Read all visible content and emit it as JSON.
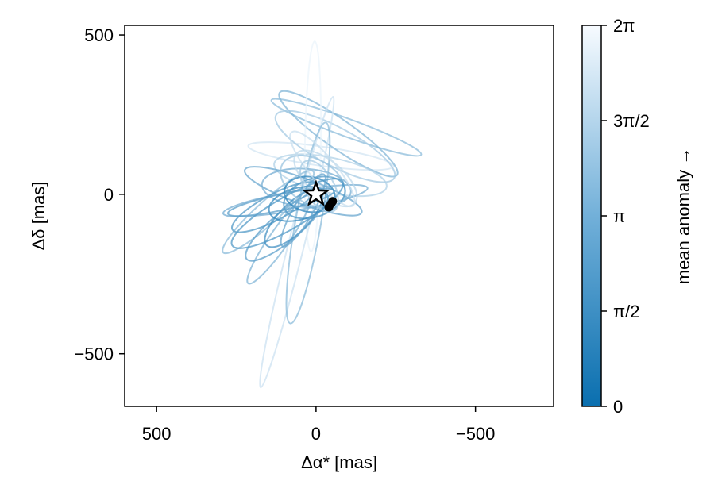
{
  "chart_data": {
    "type": "line",
    "xlabel": "Δα* [mas]",
    "ylabel": "Δδ [mas]",
    "x_axis_reversed": true,
    "xlim": [
      600,
      -745
    ],
    "ylim": [
      -665,
      530
    ],
    "xticks": [
      {
        "value": 500,
        "label": "500"
      },
      {
        "value": 0,
        "label": "0"
      },
      {
        "value": -500,
        "label": "−500"
      }
    ],
    "yticks": [
      {
        "value": 500,
        "label": "500"
      },
      {
        "value": 0,
        "label": "0"
      },
      {
        "value": -500,
        "label": "−500"
      }
    ],
    "grid": false,
    "colormap": {
      "low": "#0a6faf",
      "high": "#f7fbff"
    },
    "colorbar": {
      "label": "mean anomaly →",
      "ticks": [
        {
          "value": 0,
          "label": "0"
        },
        {
          "value": 0.25,
          "label": "π/2"
        },
        {
          "value": 0.5,
          "label": "π"
        },
        {
          "value": 0.75,
          "label": "3π/2"
        },
        {
          "value": 1.0,
          "label": "2π"
        }
      ]
    },
    "star": {
      "x": 0,
      "y": 0
    },
    "planet_points": [
      {
        "x": -52,
        "y": -22
      },
      {
        "x": -47,
        "y": -30
      },
      {
        "x": -40,
        "y": -40
      }
    ],
    "orbits": [
      {
        "cx": -15,
        "cy": 120,
        "a": 230,
        "b": 30,
        "angle": 8,
        "shade": 0.85
      },
      {
        "cx": -95,
        "cy": 210,
        "a": 250,
        "b": 28,
        "angle": 20,
        "shade": 0.55
      },
      {
        "cx": -70,
        "cy": 190,
        "a": 225,
        "b": 45,
        "angle": 35,
        "shade": 0.5
      },
      {
        "cx": -60,
        "cy": 150,
        "a": 210,
        "b": 60,
        "angle": 28,
        "shade": 0.65
      },
      {
        "cx": -45,
        "cy": 60,
        "a": 180,
        "b": 55,
        "angle": 12,
        "shade": 0.7
      },
      {
        "cx": 10,
        "cy": 150,
        "a": 330,
        "b": 25,
        "angle": -89,
        "shade": 0.95
      },
      {
        "cx": 60,
        "cy": -150,
        "a": 470,
        "b": 25,
        "angle": -76,
        "shade": 0.82
      },
      {
        "cx": 25,
        "cy": -90,
        "a": 320,
        "b": 40,
        "angle": -80,
        "shade": 0.55
      },
      {
        "cx": 65,
        "cy": -20,
        "a": 230,
        "b": 30,
        "angle": -10,
        "shade": 0.45
      },
      {
        "cx": 40,
        "cy": 10,
        "a": 195,
        "b": 40,
        "angle": 20,
        "shade": 0.4
      },
      {
        "cx": 150,
        "cy": -55,
        "a": 190,
        "b": 35,
        "angle": -42,
        "shade": 0.55
      },
      {
        "cx": 115,
        "cy": -140,
        "a": 170,
        "b": 30,
        "angle": -55,
        "shade": 0.5
      },
      {
        "cx": 95,
        "cy": -100,
        "a": 160,
        "b": 45,
        "angle": -40,
        "shade": 0.35
      },
      {
        "cx": 130,
        "cy": -40,
        "a": 150,
        "b": 40,
        "angle": -28,
        "shade": 0.3
      },
      {
        "cx": 70,
        "cy": -75,
        "a": 120,
        "b": 45,
        "angle": -45,
        "shade": 0.25
      },
      {
        "cx": 30,
        "cy": 20,
        "a": 140,
        "b": 60,
        "angle": 5,
        "shade": 0.45
      },
      {
        "cx": 10,
        "cy": 40,
        "a": 110,
        "b": 70,
        "angle": 30,
        "shade": 0.6
      },
      {
        "cx": 5,
        "cy": -10,
        "a": 100,
        "b": 60,
        "angle": -20,
        "shade": 0.3
      },
      {
        "cx": -30,
        "cy": 50,
        "a": 120,
        "b": 55,
        "angle": 40,
        "shade": 0.75
      },
      {
        "cx": 55,
        "cy": -30,
        "a": 95,
        "b": 50,
        "angle": -15,
        "shade": 0.2
      },
      {
        "cx": 20,
        "cy": 0,
        "a": 80,
        "b": 55,
        "angle": 10,
        "shade": 0.15
      },
      {
        "cx": 90,
        "cy": -60,
        "a": 200,
        "b": 50,
        "angle": -30,
        "shade": 0.3
      },
      {
        "cx": -20,
        "cy": 80,
        "a": 150,
        "b": 40,
        "angle": 50,
        "shade": 0.8
      },
      {
        "cx": 40,
        "cy": -50,
        "a": 130,
        "b": 30,
        "angle": -60,
        "shade": 0.4
      },
      {
        "cx": 110,
        "cy": -25,
        "a": 170,
        "b": 25,
        "angle": -12,
        "shade": 0.35
      },
      {
        "cx": -10,
        "cy": 25,
        "a": 90,
        "b": 45,
        "angle": 60,
        "shade": 0.65
      }
    ]
  }
}
